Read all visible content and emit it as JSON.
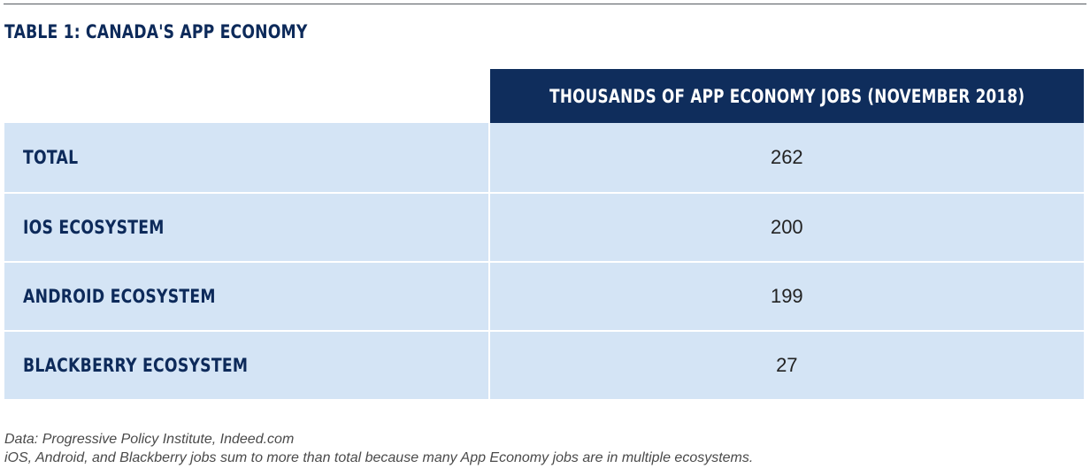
{
  "title": "TABLE 1: CANADA'S APP ECONOMY",
  "table": {
    "column_header": "THOUSANDS OF APP ECONOMY JOBS (NOVEMBER 2018)",
    "rows": [
      {
        "label": "TOTAL",
        "value": "262"
      },
      {
        "label": "IOS ECOSYSTEM",
        "value": "200"
      },
      {
        "label": "ANDROID ECOSYSTEM",
        "value": "199"
      },
      {
        "label": "BLACKBERRY ECOSYSTEM",
        "value": "27"
      }
    ]
  },
  "notes": {
    "source": "Data: Progressive Policy Institute, Indeed.com",
    "footnote": "iOS, Android, and Blackberry jobs sum to more than total because many App Economy jobs are in multiple ecosystems."
  },
  "colors": {
    "header_background": "#0f2d5c",
    "row_background": "#d4e4f5",
    "label_text": "#0d2a5a"
  }
}
